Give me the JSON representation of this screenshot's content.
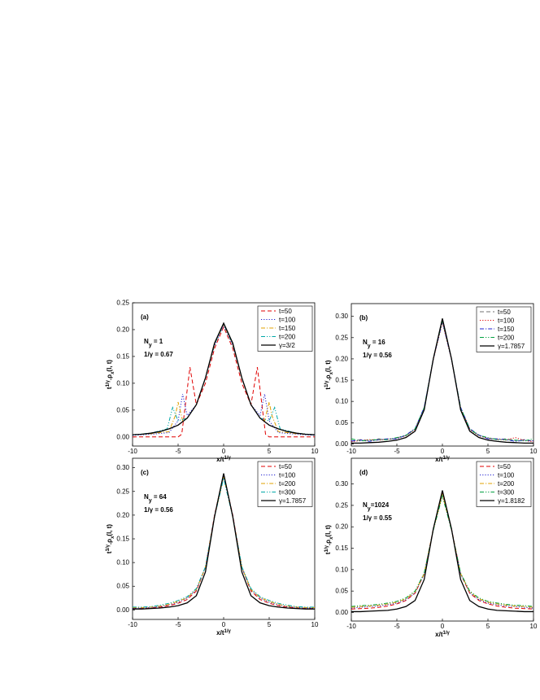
{
  "chart_data": [
    {
      "type": "line",
      "label": "(a)",
      "ny": [
        "N",
        "y",
        " = 1"
      ],
      "gamma_text": "1/γ = 0.67",
      "xlabel": [
        {
          "text": "x/t"
        },
        {
          "text": "1/γ",
          "script": "sup"
        }
      ],
      "ylabel": [
        {
          "text": "t"
        },
        {
          "text": "1/γ",
          "script": "sup"
        },
        {
          "text": ".ρ"
        },
        {
          "text": "x",
          "script": "sub"
        },
        {
          "text": "(l, t)"
        }
      ],
      "xlim": [
        -10,
        10
      ],
      "xticks": [
        -10,
        -5,
        0,
        5,
        10
      ],
      "ylim": [
        -0.017,
        0.25
      ],
      "yticks": [
        {
          "value": 0,
          "label": "0.00"
        },
        {
          "value": 0.05,
          "label": "0.05"
        },
        {
          "value": 0.1,
          "label": "0.10"
        },
        {
          "value": 0.15,
          "label": "0.15"
        },
        {
          "value": 0.2,
          "label": "0.20"
        },
        {
          "value": 0.25,
          "label": "0.25"
        }
      ],
      "x": [
        -10,
        -9,
        -8,
        -7,
        -6,
        -5,
        -4,
        -3,
        -2,
        -1,
        0,
        1,
        2,
        3,
        4,
        5,
        6,
        7,
        8,
        9,
        10
      ],
      "series": [
        {
          "name": "t=50",
          "color": "#e00000",
          "dash": "dashed",
          "x": [
            -10,
            -8,
            -6,
            -5,
            -4.6,
            -4.2,
            -3.7,
            -3.4,
            -3,
            -2,
            -1,
            0,
            1,
            2,
            3,
            3.4,
            3.7,
            4.2,
            4.6,
            5,
            6,
            8,
            10
          ],
          "values": [
            0,
            0,
            0,
            0,
            0.005,
            0.06,
            0.13,
            0.1,
            0.06,
            0.1,
            0.165,
            0.205,
            0.165,
            0.1,
            0.06,
            0.1,
            0.13,
            0.06,
            0.005,
            0,
            0,
            0,
            0
          ]
        },
        {
          "name": "t=100",
          "color": "#2020d0",
          "dash": "dotted",
          "x": [
            -10,
            -8,
            -6,
            -5,
            -4.5,
            -4,
            -3,
            -2,
            -1,
            0,
            1,
            2,
            3,
            4,
            4.5,
            5,
            6,
            8,
            10
          ],
          "values": [
            0.003,
            0.005,
            0.008,
            0.03,
            0.08,
            0.04,
            0.06,
            0.11,
            0.17,
            0.208,
            0.17,
            0.11,
            0.06,
            0.04,
            0.08,
            0.03,
            0.008,
            0.005,
            0.003
          ]
        },
        {
          "name": "t=150",
          "color": "#e0a000",
          "dash": "dashdot",
          "x": [
            -10,
            -8,
            -6,
            -5.3,
            -5,
            -4.5,
            -4,
            -3,
            -2,
            -1,
            0,
            1,
            2,
            3,
            4,
            4.5,
            5,
            5.3,
            6,
            8,
            10
          ],
          "values": [
            0.004,
            0.006,
            0.01,
            0.04,
            0.065,
            0.03,
            0.035,
            0.06,
            0.11,
            0.172,
            0.21,
            0.172,
            0.11,
            0.06,
            0.035,
            0.03,
            0.065,
            0.04,
            0.01,
            0.006,
            0.004
          ]
        },
        {
          "name": "t=200",
          "color": "#00a8a8",
          "dash": "dashdotdot",
          "x": [
            -10,
            -8,
            -6.2,
            -5.6,
            -5,
            -4,
            -3,
            -2,
            -1,
            0,
            1,
            2,
            3,
            4,
            5,
            5.6,
            6.2,
            8,
            10
          ],
          "values": [
            0.004,
            0.007,
            0.015,
            0.055,
            0.03,
            0.035,
            0.06,
            0.11,
            0.173,
            0.21,
            0.173,
            0.11,
            0.06,
            0.035,
            0.03,
            0.055,
            0.015,
            0.007,
            0.004
          ]
        },
        {
          "name": "γ=3/2",
          "color": "#000000",
          "dash": "solid",
          "values": [
            0.004,
            0.005,
            0.007,
            0.01,
            0.015,
            0.022,
            0.035,
            0.06,
            0.11,
            0.175,
            0.212,
            0.175,
            0.11,
            0.06,
            0.035,
            0.022,
            0.015,
            0.01,
            0.007,
            0.005,
            0.004
          ]
        }
      ]
    },
    {
      "type": "line",
      "label": "(b)",
      "ny": [
        "N",
        "y",
        " = 16"
      ],
      "gamma_text": "1/γ = 0.56",
      "xlabel": [
        {
          "text": "x/t"
        },
        {
          "text": "1/γ",
          "script": "sup"
        }
      ],
      "ylabel": [
        {
          "text": "t"
        },
        {
          "text": "1/γ",
          "script": "sup"
        },
        {
          "text": ".ρ"
        },
        {
          "text": "x",
          "script": "sub"
        },
        {
          "text": "(l, t)"
        }
      ],
      "xlim": [
        -10,
        10
      ],
      "xticks": [
        -10,
        -5,
        0,
        5,
        10
      ],
      "ylim": [
        -0.005,
        0.33
      ],
      "yticks": [
        {
          "value": 0,
          "label": "0.00"
        },
        {
          "value": 0.05,
          "label": "0.05"
        },
        {
          "value": 0.1,
          "label": "0.10"
        },
        {
          "value": 0.15,
          "label": "0.15"
        },
        {
          "value": 0.2,
          "label": "0.20"
        },
        {
          "value": 0.25,
          "label": "0.25"
        },
        {
          "value": 0.3,
          "label": "0.30"
        }
      ],
      "x": [
        -10,
        -9,
        -8,
        -7,
        -6,
        -5,
        -4,
        -3,
        -2,
        -1,
        0,
        1,
        2,
        3,
        4,
        5,
        6,
        7,
        8,
        9,
        10
      ],
      "series": [
        {
          "name": "t=50",
          "color": "#707070",
          "dash": "dashed",
          "values": [
            0.006,
            0.01,
            0.008,
            0.012,
            0.01,
            0.014,
            0.02,
            0.035,
            0.085,
            0.2,
            0.29,
            0.2,
            0.085,
            0.035,
            0.02,
            0.014,
            0.01,
            0.012,
            0.008,
            0.01,
            0.006
          ]
        },
        {
          "name": "t=100",
          "color": "#e00000",
          "dash": "dotted",
          "values": [
            0.005,
            0.008,
            0.01,
            0.009,
            0.011,
            0.013,
            0.019,
            0.034,
            0.084,
            0.198,
            0.285,
            0.198,
            0.084,
            0.034,
            0.019,
            0.013,
            0.011,
            0.009,
            0.015,
            0.008,
            0.005
          ]
        },
        {
          "name": "t=150",
          "color": "#2020d0",
          "dash": "dashdot",
          "values": [
            0.007,
            0.009,
            0.006,
            0.01,
            0.012,
            0.012,
            0.021,
            0.036,
            0.086,
            0.199,
            0.288,
            0.199,
            0.086,
            0.036,
            0.021,
            0.012,
            0.012,
            0.01,
            0.006,
            0.009,
            0.007
          ]
        },
        {
          "name": "t=200",
          "color": "#00a040",
          "dash": "dashdotdot",
          "values": [
            0.012,
            0.007,
            0.009,
            0.01,
            0.01,
            0.015,
            0.02,
            0.035,
            0.085,
            0.2,
            0.29,
            0.2,
            0.085,
            0.035,
            0.02,
            0.015,
            0.01,
            0.01,
            0.009,
            0.007,
            0.012
          ]
        },
        {
          "name": "γ=1.7857",
          "color": "#000000",
          "dash": "solid",
          "values": [
            0.002,
            0.002,
            0.003,
            0.004,
            0.006,
            0.009,
            0.015,
            0.03,
            0.08,
            0.2,
            0.295,
            0.2,
            0.08,
            0.03,
            0.015,
            0.009,
            0.006,
            0.004,
            0.003,
            0.002,
            0.002
          ]
        }
      ]
    },
    {
      "type": "line",
      "label": "(c)",
      "ny": [
        "N",
        "y",
        " = 64"
      ],
      "gamma_text": "1/γ = 0.56",
      "xlabel": [
        {
          "text": "x/t"
        },
        {
          "text": "1/γ",
          "script": "sup"
        }
      ],
      "ylabel": [
        {
          "text": "t"
        },
        {
          "text": "1/γ",
          "script": "sup"
        },
        {
          "text": ".ρ"
        },
        {
          "text": "x",
          "script": "sub"
        },
        {
          "text": "(l, t)"
        }
      ],
      "xlim": [
        -10,
        10
      ],
      "xticks": [
        -10,
        -5,
        0,
        5,
        10
      ],
      "ylim": [
        -0.02,
        0.32
      ],
      "yticks": [
        {
          "value": 0,
          "label": "0.00"
        },
        {
          "value": 0.05,
          "label": "0.05"
        },
        {
          "value": 0.1,
          "label": "0.10"
        },
        {
          "value": 0.15,
          "label": "0.15"
        },
        {
          "value": 0.2,
          "label": "0.20"
        },
        {
          "value": 0.25,
          "label": "0.25"
        },
        {
          "value": 0.3,
          "label": "0.30"
        }
      ],
      "x": [
        -10,
        -9,
        -8,
        -7,
        -6,
        -5,
        -4,
        -3,
        -2,
        -1,
        0,
        1,
        2,
        3,
        4,
        5,
        6,
        7,
        8,
        9,
        10
      ],
      "series": [
        {
          "name": "t=50",
          "color": "#e00000",
          "dash": "dashed",
          "values": [
            0.003,
            0.003,
            0.004,
            0.006,
            0.009,
            0.014,
            0.022,
            0.04,
            0.09,
            0.2,
            0.286,
            0.2,
            0.09,
            0.04,
            0.022,
            0.014,
            0.009,
            0.006,
            0.004,
            0.003,
            0.003
          ]
        },
        {
          "name": "t=100",
          "color": "#2020d0",
          "dash": "dotted",
          "values": [
            0.004,
            0.004,
            0.005,
            0.007,
            0.011,
            0.016,
            0.025,
            0.042,
            0.09,
            0.198,
            0.283,
            0.198,
            0.09,
            0.042,
            0.025,
            0.016,
            0.011,
            0.007,
            0.005,
            0.004,
            0.004
          ]
        },
        {
          "name": "t=200",
          "color": "#e0a000",
          "dash": "dashdot",
          "values": [
            0.005,
            0.005,
            0.006,
            0.008,
            0.012,
            0.018,
            0.026,
            0.043,
            0.09,
            0.197,
            0.28,
            0.197,
            0.09,
            0.043,
            0.026,
            0.018,
            0.012,
            0.008,
            0.006,
            0.005,
            0.005
          ]
        },
        {
          "name": "t=300",
          "color": "#00a8a8",
          "dash": "dashdotdot",
          "values": [
            0.006,
            0.006,
            0.007,
            0.01,
            0.014,
            0.02,
            0.028,
            0.045,
            0.091,
            0.196,
            0.278,
            0.196,
            0.091,
            0.045,
            0.028,
            0.02,
            0.014,
            0.01,
            0.007,
            0.006,
            0.006
          ]
        },
        {
          "name": "γ=1.7857",
          "color": "#000000",
          "dash": "solid",
          "values": [
            0.002,
            0.002,
            0.003,
            0.004,
            0.006,
            0.009,
            0.015,
            0.03,
            0.08,
            0.197,
            0.288,
            0.197,
            0.08,
            0.03,
            0.015,
            0.009,
            0.006,
            0.004,
            0.003,
            0.002,
            0.002
          ]
        }
      ]
    },
    {
      "type": "line",
      "label": "(d)",
      "ny": [
        "N",
        "y",
        "=1024"
      ],
      "gamma_text": "1/γ = 0.55",
      "xlabel": [
        {
          "text": "x/t"
        },
        {
          "text": "1/γ",
          "script": "sup"
        }
      ],
      "ylabel": [
        {
          "text": "t"
        },
        {
          "text": "1/γ",
          "script": "sup"
        },
        {
          "text": ".ρ"
        },
        {
          "text": "x",
          "script": "sub"
        },
        {
          "text": "(l, t)"
        }
      ],
      "xlim": [
        -10,
        10
      ],
      "xticks": [
        -10,
        -5,
        0,
        5,
        10
      ],
      "ylim": [
        -0.02,
        0.36
      ],
      "yticks": [
        {
          "value": 0,
          "label": "0.00"
        },
        {
          "value": 0.05,
          "label": "0.05"
        },
        {
          "value": 0.1,
          "label": "0.10"
        },
        {
          "value": 0.15,
          "label": "0.15"
        },
        {
          "value": 0.2,
          "label": "0.20"
        },
        {
          "value": 0.25,
          "label": "0.25"
        },
        {
          "value": 0.3,
          "label": "0.30"
        }
      ],
      "x": [
        -10,
        -9,
        -8,
        -7,
        -6,
        -5,
        -4,
        -3,
        -2,
        -1,
        0,
        1,
        2,
        3,
        4,
        5,
        6,
        7,
        8,
        9,
        10
      ],
      "series": [
        {
          "name": "t=50",
          "color": "#e00000",
          "dash": "dashed",
          "values": [
            0.008,
            0.009,
            0.01,
            0.012,
            0.015,
            0.02,
            0.028,
            0.045,
            0.09,
            0.195,
            0.28,
            0.195,
            0.09,
            0.045,
            0.028,
            0.02,
            0.015,
            0.012,
            0.01,
            0.009,
            0.008
          ]
        },
        {
          "name": "t=100",
          "color": "#2020d0",
          "dash": "dotted",
          "values": [
            0.01,
            0.012,
            0.014,
            0.015,
            0.018,
            0.022,
            0.03,
            0.046,
            0.09,
            0.194,
            0.277,
            0.194,
            0.09,
            0.046,
            0.03,
            0.022,
            0.018,
            0.015,
            0.014,
            0.012,
            0.01
          ]
        },
        {
          "name": "t=200",
          "color": "#e0a000",
          "dash": "dashdot",
          "values": [
            0.012,
            0.014,
            0.015,
            0.017,
            0.02,
            0.024,
            0.032,
            0.048,
            0.091,
            0.193,
            0.275,
            0.193,
            0.091,
            0.048,
            0.032,
            0.024,
            0.02,
            0.017,
            0.015,
            0.014,
            0.012
          ]
        },
        {
          "name": "t=300",
          "color": "#00a040",
          "dash": "dashdotdot",
          "values": [
            0.014,
            0.016,
            0.017,
            0.019,
            0.022,
            0.026,
            0.034,
            0.05,
            0.092,
            0.192,
            0.272,
            0.192,
            0.092,
            0.05,
            0.034,
            0.026,
            0.022,
            0.019,
            0.017,
            0.016,
            0.014
          ]
        },
        {
          "name": "γ=1.8182",
          "color": "#000000",
          "dash": "solid",
          "values": [
            0.002,
            0.002,
            0.003,
            0.004,
            0.005,
            0.008,
            0.014,
            0.028,
            0.077,
            0.195,
            0.285,
            0.195,
            0.077,
            0.028,
            0.014,
            0.008,
            0.005,
            0.004,
            0.003,
            0.002,
            0.002
          ]
        }
      ]
    }
  ]
}
